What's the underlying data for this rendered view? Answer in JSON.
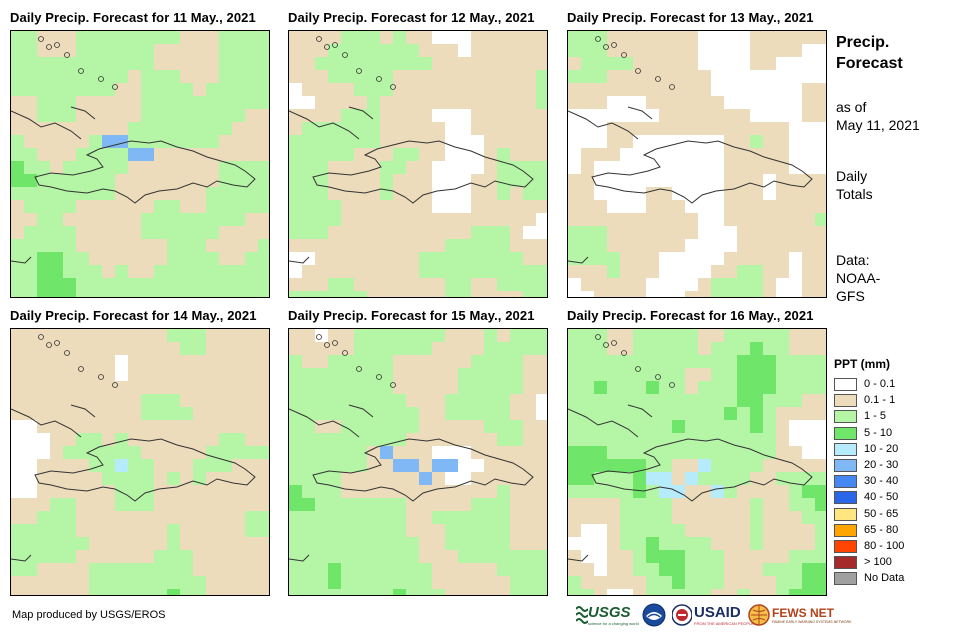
{
  "panels": [
    {
      "title": "Daily Precip. Forecast for 11 May., 2021"
    },
    {
      "title": "Daily Precip. Forecast for 12 May., 2021"
    },
    {
      "title": "Daily Precip. Forecast for 13 May., 2021"
    },
    {
      "title": "Daily Precip. Forecast for 14 May., 2021"
    },
    {
      "title": "Daily Precip. Forecast for 15 May., 2021"
    },
    {
      "title": "Daily Precip. Forecast for 16 May., 2021"
    }
  ],
  "side": {
    "title_line1": "Precip.",
    "title_line2": "Forecast",
    "asof_line1": "as of",
    "asof_line2": "May 11, 2021",
    "daily_line1": "Daily",
    "daily_line2": "Totals",
    "source_line1": "Data:",
    "source_line2": "NOAA-",
    "source_line3": "GFS"
  },
  "legend": {
    "title": "PPT (mm)",
    "items": [
      {
        "label": "0 - 0.1",
        "color": "#ffffff"
      },
      {
        "label": "0.1 - 1",
        "color": "#ecdcbc"
      },
      {
        "label": "1 - 5",
        "color": "#b4f5a6"
      },
      {
        "label": "5 - 10",
        "color": "#6fe66a"
      },
      {
        "label": "10 - 20",
        "color": "#b5ebfa"
      },
      {
        "label": "20 - 30",
        "color": "#7fb8f5"
      },
      {
        "label": "30 - 40",
        "color": "#4688f2"
      },
      {
        "label": "40 - 50",
        "color": "#2a66e8"
      },
      {
        "label": "50 - 65",
        "color": "#ffe680"
      },
      {
        "label": "65 - 80",
        "color": "#ffa500"
      },
      {
        "label": "80 - 100",
        "color": "#ff4500"
      },
      {
        "label": "> 100",
        "color": "#a52a2a"
      },
      {
        "label": "No Data",
        "color": "#a0a0a0"
      }
    ]
  },
  "credit": "Map produced by USGS/EROS",
  "logos": {
    "usgs": "USGS",
    "usgs_tag": "science for a changing world",
    "usaid": "USAID",
    "usaid_tag": "FROM THE AMERICAN PEOPLE",
    "fews": "FEWS NET",
    "fews_tag": "FAMINE EARLY WARNING SYSTEMS NETWORK"
  }
}
